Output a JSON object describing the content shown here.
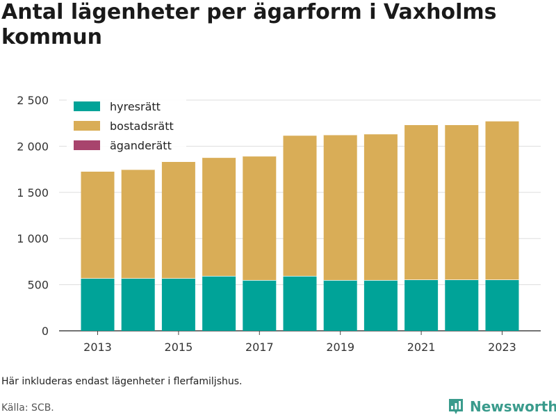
{
  "chart_data": {
    "type": "bar",
    "stacked": true,
    "title": "Antal lägenheter per ägarform i Vaxholms kommun",
    "categories": [
      "2013",
      "2014",
      "2015",
      "2016",
      "2017",
      "2018",
      "2019",
      "2020",
      "2021",
      "2022",
      "2023"
    ],
    "x_tick_labels": [
      "2013",
      "2015",
      "2017",
      "2019",
      "2021",
      "2023"
    ],
    "y_tick_labels": [
      "0",
      "500",
      "1 000",
      "1 500",
      "2 000",
      "2 500"
    ],
    "y_ticks": [
      0,
      500,
      1000,
      1500,
      2000,
      2500
    ],
    "ylim": [
      0,
      2500
    ],
    "grid": true,
    "legend_position": "top-left",
    "series": [
      {
        "name": "hyresrätt",
        "color": "#00a398",
        "values": [
          570,
          570,
          570,
          595,
          550,
          595,
          550,
          550,
          555,
          555,
          555
        ]
      },
      {
        "name": "bostadsrätt",
        "color": "#d9ad57",
        "values": [
          1160,
          1180,
          1265,
          1285,
          1345,
          1525,
          1575,
          1585,
          1680,
          1680,
          1720
        ]
      },
      {
        "name": "äganderätt",
        "color": "#a8446d",
        "values": [
          0,
          0,
          0,
          0,
          0,
          0,
          0,
          0,
          0,
          0,
          0
        ]
      }
    ]
  },
  "note": "Här inkluderas endast lägenheter i flerfamiljshus.",
  "source": "Källa: SCB.",
  "brand": {
    "name": "Newsworthy",
    "color": "#3a9b8c"
  }
}
